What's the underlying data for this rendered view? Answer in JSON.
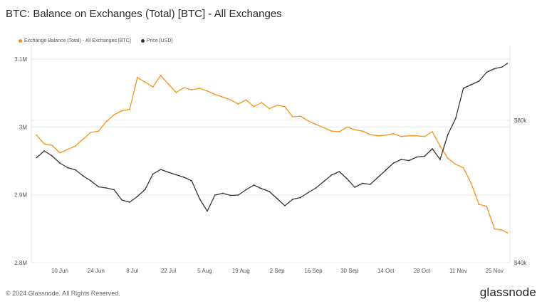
{
  "title": "BTC: Balance on Exchanges (Total) [BTC] - All Exchanges",
  "footer": "© 2024 Glassnode. All Rights Reserved.",
  "brand": "glassnode",
  "colors": {
    "balance": "#f7931a",
    "price": "#333333",
    "grid": "#ececec"
  },
  "chart_data": {
    "type": "line",
    "title": "BTC: Balance on Exchanges (Total) [BTC] - All Exchanges",
    "x": [
      "2024-06-01",
      "2024-06-04",
      "2024-06-07",
      "2024-06-10",
      "2024-06-13",
      "2024-06-16",
      "2024-06-19",
      "2024-06-22",
      "2024-06-25",
      "2024-06-28",
      "2024-07-01",
      "2024-07-04",
      "2024-07-07",
      "2024-07-10",
      "2024-07-13",
      "2024-07-16",
      "2024-07-19",
      "2024-07-22",
      "2024-07-25",
      "2024-07-28",
      "2024-07-31",
      "2024-08-03",
      "2024-08-06",
      "2024-08-09",
      "2024-08-12",
      "2024-08-15",
      "2024-08-18",
      "2024-08-21",
      "2024-08-24",
      "2024-08-27",
      "2024-08-30",
      "2024-09-02",
      "2024-09-05",
      "2024-09-08",
      "2024-09-11",
      "2024-09-14",
      "2024-09-17",
      "2024-09-20",
      "2024-09-23",
      "2024-09-26",
      "2024-09-29",
      "2024-10-02",
      "2024-10-05",
      "2024-10-08",
      "2024-10-11",
      "2024-10-14",
      "2024-10-17",
      "2024-10-20",
      "2024-10-23",
      "2024-10-26",
      "2024-10-29",
      "2024-11-01",
      "2024-11-04",
      "2024-11-07",
      "2024-11-10",
      "2024-11-13",
      "2024-11-16",
      "2024-11-19",
      "2024-11-22",
      "2024-11-25",
      "2024-11-28",
      "2024-11-30"
    ],
    "x_tick_labels": [
      "10 Jun",
      "24 Jun",
      "8 Jul",
      "22 Jul",
      "5 Aug",
      "19 Aug",
      "2 Sep",
      "16 Sep",
      "30 Sep",
      "14 Oct",
      "28 Oct",
      "11 Nov",
      "25 Nov"
    ],
    "x_tick_dates": [
      "2024-06-10",
      "2024-06-24",
      "2024-07-08",
      "2024-07-22",
      "2024-08-05",
      "2024-08-19",
      "2024-09-02",
      "2024-09-16",
      "2024-09-30",
      "2024-10-14",
      "2024-10-28",
      "2024-11-11",
      "2024-11-25"
    ],
    "y_left": {
      "ticks": [
        2800000,
        2900000,
        3000000,
        3100000
      ],
      "tick_labels": [
        "2.8M",
        "2.9M",
        "3M",
        "3.1M"
      ],
      "range": [
        2800000,
        3120000
      ]
    },
    "y_right": {
      "ticks": [
        40000,
        80000
      ],
      "tick_labels": [
        "$40k",
        "$80k"
      ],
      "range": [
        40000,
        101000
      ]
    },
    "series": [
      {
        "name": "Exchange Balance (Total) - All Exchanges [BTC]",
        "axis": "left",
        "color": "#f7931a",
        "values": [
          2988000,
          2975000,
          2973000,
          2962000,
          2967000,
          2972000,
          2982000,
          2992000,
          2994000,
          3008000,
          3018000,
          3024000,
          3026000,
          3073000,
          3066000,
          3059000,
          3076000,
          3063000,
          3051000,
          3058000,
          3055000,
          3057000,
          3053000,
          3048000,
          3044000,
          3040000,
          3034000,
          3040000,
          3030000,
          3036000,
          3027000,
          3032000,
          3030000,
          3015000,
          3016000,
          3009000,
          3004000,
          2999000,
          2994000,
          2993000,
          3000000,
          2996000,
          2994000,
          2989000,
          2987000,
          2988000,
          2990000,
          2986000,
          2987000,
          2987000,
          2986000,
          2993000,
          2972000,
          2954000,
          2945000,
          2940000,
          2917000,
          2886000,
          2883000,
          2850000,
          2848000,
          2844000
        ]
      },
      {
        "name": "Price [USD]",
        "axis": "right",
        "color": "#333333",
        "values": [
          69500,
          71400,
          70000,
          68000,
          66700,
          66100,
          64400,
          63000,
          61300,
          61000,
          60500,
          57600,
          57000,
          58600,
          60600,
          64900,
          66200,
          65400,
          64700,
          64000,
          63000,
          58000,
          54500,
          59000,
          59500,
          58900,
          59000,
          60500,
          61800,
          60800,
          60000,
          58000,
          56000,
          57800,
          58300,
          59700,
          61000,
          62800,
          64600,
          65600,
          63600,
          61200,
          62300,
          62000,
          64000,
          66000,
          68000,
          69000,
          68700,
          69700,
          69900,
          72000,
          69000,
          76000,
          80500,
          89000,
          90000,
          91000,
          93500,
          94500,
          95000,
          96000
        ]
      }
    ],
    "legend": [
      "Exchange Balance (Total) - All Exchanges [BTC]",
      "Price [USD]"
    ],
    "grid": true,
    "legend_position": "top-left"
  }
}
